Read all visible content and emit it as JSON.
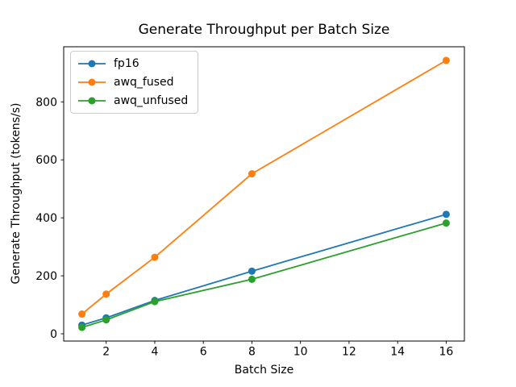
{
  "chart_data": {
    "type": "line",
    "title": "Generate Throughput per Batch Size",
    "xlabel": "Batch Size",
    "ylabel": "Generate Throughput (tokens/s)",
    "x": [
      1,
      2,
      4,
      8,
      16
    ],
    "series": [
      {
        "name": "fp16",
        "color": "#1f77b4",
        "values": [
          30,
          55,
          115,
          216,
          412
        ]
      },
      {
        "name": "awq_fused",
        "color": "#ff7f0e",
        "values": [
          68,
          137,
          264,
          552,
          943
        ]
      },
      {
        "name": "awq_unfused",
        "color": "#2ca02c",
        "values": [
          22,
          48,
          111,
          188,
          382
        ]
      }
    ],
    "xticks": [
      2,
      4,
      6,
      8,
      10,
      12,
      14,
      16
    ],
    "yticks": [
      0,
      200,
      400,
      600,
      800
    ],
    "xlim": [
      0.25,
      16.75
    ],
    "ylim": [
      -25,
      990
    ],
    "grid": false,
    "marker": "circle",
    "legend_position": "upper left",
    "axis_color": "#000000",
    "tick_label_color": "#000000",
    "legend_border_color": "#cccccc",
    "background": "#ffffff"
  }
}
